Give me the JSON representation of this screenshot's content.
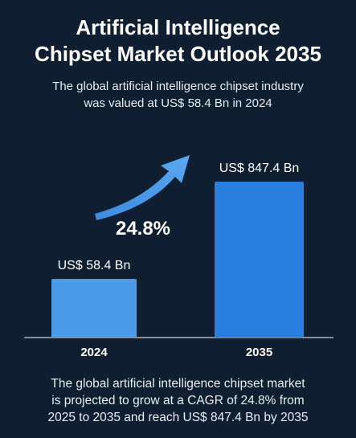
{
  "header": {
    "title_line1": "Artificial Intelligence",
    "title_line2": "Chipset Market Outlook 2035",
    "subtitle_line1": "The global artificial intelligence chipset industry",
    "subtitle_line2": "was valued at US$ 58.4 Bn in 2024"
  },
  "chart_data": {
    "type": "bar",
    "categories": [
      "2024",
      "2035"
    ],
    "values": [
      58.4,
      847.4
    ],
    "data_labels": [
      "US$ 58.4 Bn",
      "US$ 847.4 Bn"
    ],
    "annotation": "24.8%",
    "colors": {
      "bar_2024": "#4a9be8",
      "bar_2035": "#2a7ee0",
      "arrow": "#4a9be8"
    }
  },
  "footer": {
    "line1": "The global artificial intelligence chipset market",
    "line2": "is projected to grow at a CAGR of 24.8% from",
    "line3": "2025 to 2035 and reach US$ 847.4 Bn by 2035"
  }
}
